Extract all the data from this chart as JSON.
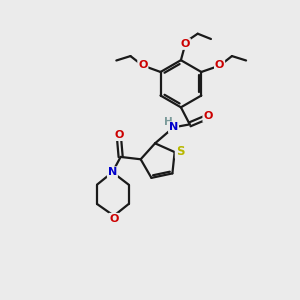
{
  "bg_color": "#ebebeb",
  "bond_color": "#1a1a1a",
  "S_color": "#b8b800",
  "N_color": "#0000cc",
  "O_color": "#cc0000",
  "H_color": "#7a9a9a",
  "lw": 1.6,
  "fig_size": [
    3.0,
    3.0
  ],
  "dpi": 100,
  "xlim": [
    0,
    10
  ],
  "ylim": [
    0,
    10
  ]
}
